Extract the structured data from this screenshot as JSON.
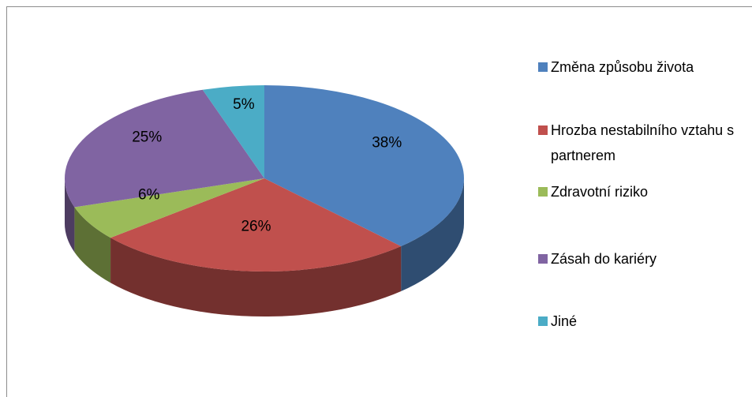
{
  "chart_data": {
    "type": "pie3d",
    "categories": [
      "Změna způsobu života",
      "Hrozba nestabilního vztahu s partnerem",
      "Zdravotní riziko",
      "Zásah do kariéry",
      "Jiné"
    ],
    "values": [
      38,
      26,
      6,
      25,
      5
    ],
    "value_labels": [
      "38%",
      "26%",
      "6%",
      "25%",
      "5%"
    ],
    "colors": [
      "#4f81bd",
      "#c0504d",
      "#9bbb59",
      "#8064a2",
      "#4bacc6"
    ],
    "legend": "right"
  }
}
